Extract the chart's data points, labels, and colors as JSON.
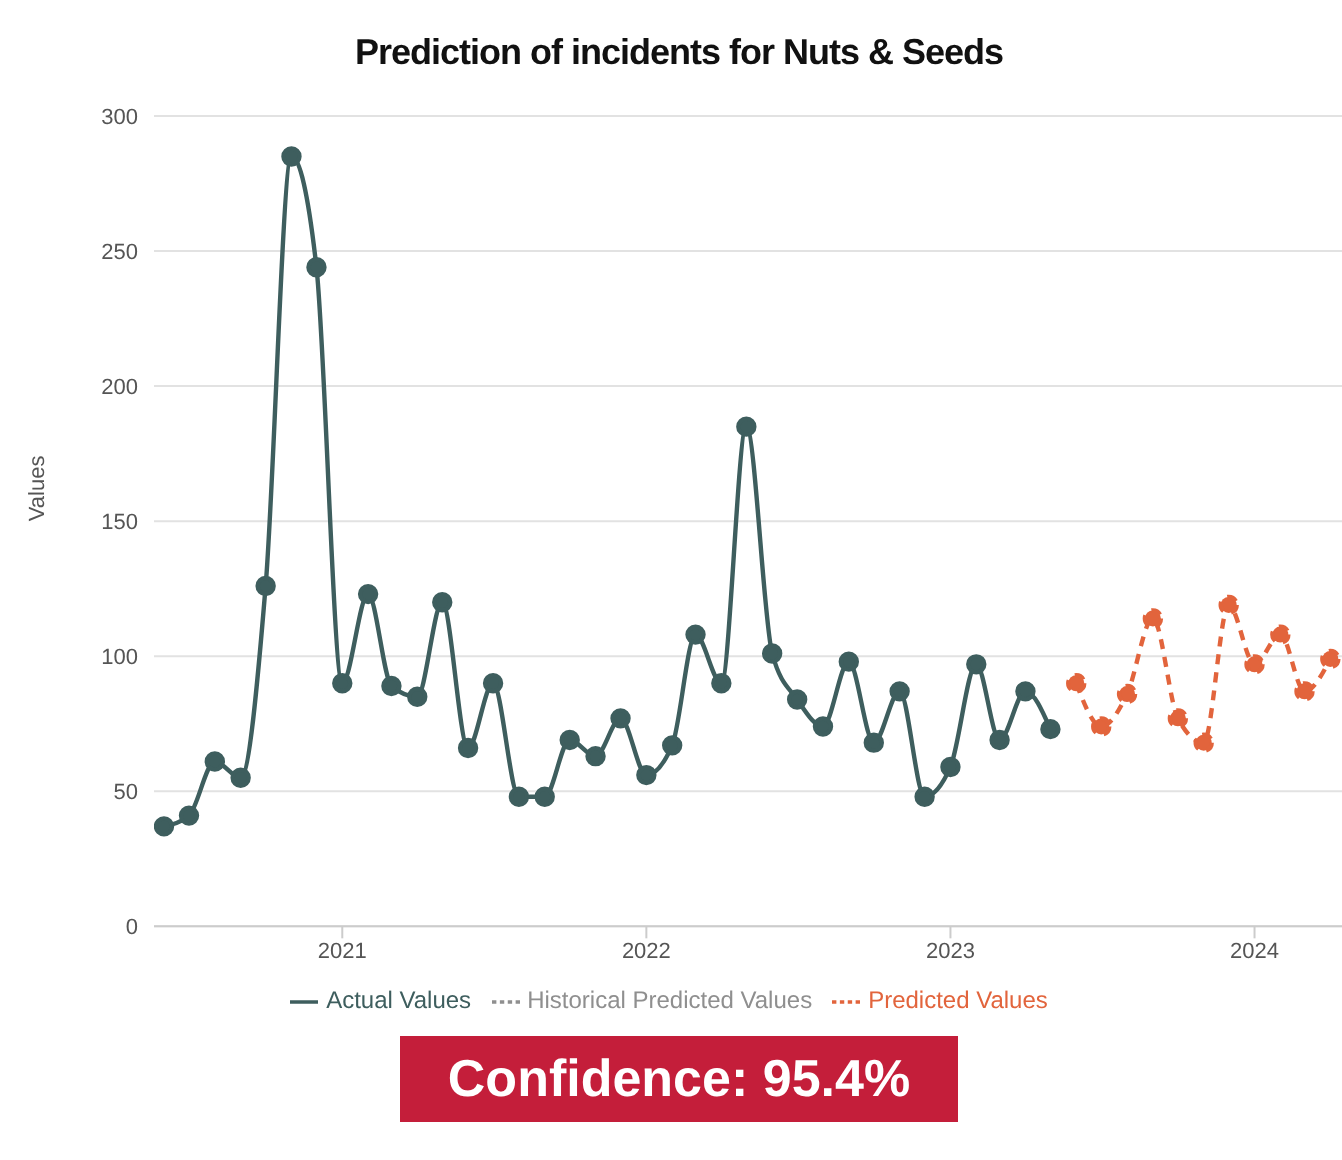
{
  "chart_data": {
    "type": "line",
    "title": "Prediction of incidents for Nuts & Seeds",
    "ylabel": "Values",
    "x": [
      "2020-06",
      "2020-07",
      "2020-08",
      "2020-09",
      "2020-10",
      "2020-11",
      "2020-12",
      "2021-01",
      "2021-02",
      "2021-03",
      "2021-04",
      "2021-05",
      "2021-06",
      "2021-07",
      "2021-08",
      "2021-09",
      "2021-10",
      "2021-11",
      "2021-12",
      "2022-01",
      "2022-02",
      "2022-03",
      "2022-04",
      "2022-05",
      "2022-06",
      "2022-07",
      "2022-08",
      "2022-09",
      "2022-10",
      "2022-11",
      "2022-12",
      "2023-01",
      "2023-02",
      "2023-03",
      "2023-04",
      "2023-05",
      "2023-06",
      "2023-07",
      "2023-08",
      "2023-09",
      "2023-10",
      "2023-11",
      "2023-12",
      "2024-01",
      "2024-02",
      "2024-03",
      "2024-04"
    ],
    "series": [
      {
        "name": "Actual Values",
        "color": "#3e5e5e",
        "line_style": "solid",
        "values": [
          37,
          41,
          61,
          55,
          126,
          285,
          244,
          90,
          123,
          89,
          85,
          120,
          66,
          90,
          48,
          48,
          69,
          63,
          77,
          56,
          67,
          108,
          90,
          185,
          101,
          84,
          74,
          98,
          68,
          87,
          48,
          59,
          97,
          69,
          87,
          73,
          null,
          null,
          null,
          null,
          null,
          null,
          null,
          null,
          null,
          null,
          null
        ]
      },
      {
        "name": "Historical Predicted Values",
        "color": "#8f8f8f",
        "line_style": "dashed",
        "values": [
          null,
          null,
          null,
          null,
          null,
          null,
          null,
          null,
          null,
          null,
          null,
          null,
          null,
          null,
          null,
          null,
          null,
          null,
          null,
          null,
          null,
          null,
          null,
          null,
          null,
          null,
          null,
          null,
          null,
          null,
          null,
          null,
          null,
          null,
          null,
          null,
          null,
          null,
          null,
          null,
          null,
          null,
          null,
          null,
          null,
          null,
          null
        ]
      },
      {
        "name": "Predicted Values",
        "color": "#e2643c",
        "line_style": "dashed",
        "values": [
          null,
          null,
          null,
          null,
          null,
          null,
          null,
          null,
          null,
          null,
          null,
          null,
          null,
          null,
          null,
          null,
          null,
          null,
          null,
          null,
          null,
          null,
          null,
          null,
          null,
          null,
          null,
          null,
          null,
          null,
          null,
          null,
          null,
          null,
          null,
          null,
          90,
          74,
          86,
          114,
          77,
          68,
          119,
          97,
          108,
          87,
          99
        ]
      }
    ],
    "xlim": [
      "2020-05-20",
      "2024-04-15"
    ],
    "xticks": [
      "2021",
      "2022",
      "2023",
      "2024"
    ],
    "ylim": [
      0,
      300
    ],
    "yticks": [
      0,
      50,
      100,
      150,
      200,
      250,
      300
    ],
    "grid": "y",
    "legend": "bottom",
    "marker": "circle",
    "annotations": [
      "Confidence: 95.4%"
    ]
  }
}
